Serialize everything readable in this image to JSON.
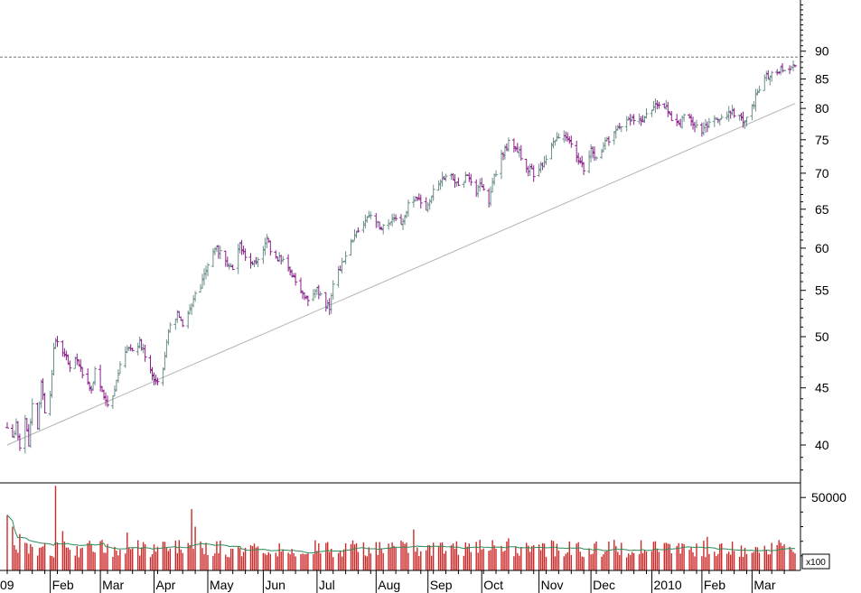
{
  "colors": {
    "background": "#ffffff",
    "axis": "#000000",
    "up_bar": "#6b8f8a",
    "down_bar": "#8a1f8a",
    "trendline": "#b4b4b4",
    "reference_line": "#777777",
    "volume_bar": "#cc2a2a",
    "volume_ma": "#2e8b57"
  },
  "chart_data": [
    {
      "type": "ohlc",
      "scale": "log",
      "ylim": [
        37,
        100
      ],
      "y_ticks": [
        40,
        45,
        50,
        55,
        60,
        65,
        70,
        75,
        80,
        85,
        90
      ],
      "reference_line": 88.9,
      "trendline": {
        "start": [
          "2009-01-09",
          40.0
        ],
        "end": [
          "2010-03-25",
          80.8
        ]
      },
      "x_labels": [
        "09",
        "Feb",
        "Mar",
        "Apr",
        "May",
        "Jun",
        "Jul",
        "Aug",
        "Sep",
        "Oct",
        "Nov",
        "Dec",
        "2010",
        "Feb",
        "Mar"
      ],
      "x_range": [
        "2009-01-09",
        "2010-03-25"
      ],
      "anchors": [
        [
          "2009-01-09",
          41.5
        ],
        [
          "2009-01-12",
          40.5
        ],
        [
          "2009-01-14",
          41.8
        ],
        [
          "2009-01-16",
          39.5
        ],
        [
          "2009-01-19",
          42.0
        ],
        [
          "2009-01-21",
          40.0
        ],
        [
          "2009-01-23",
          43.5
        ],
        [
          "2009-01-26",
          41.5
        ],
        [
          "2009-01-28",
          45.5
        ],
        [
          "2009-01-30",
          43.0
        ],
        [
          "2009-02-02",
          44.0
        ],
        [
          "2009-02-04",
          48.5
        ],
        [
          "2009-02-05",
          49.8
        ],
        [
          "2009-02-09",
          48.5
        ],
        [
          "2009-02-13",
          47.2
        ],
        [
          "2009-02-17",
          48.0
        ],
        [
          "2009-02-20",
          46.0
        ],
        [
          "2009-02-25",
          45.0
        ],
        [
          "2009-02-27",
          46.5
        ],
        [
          "2009-03-04",
          44.0
        ],
        [
          "2009-03-06",
          43.2
        ],
        [
          "2009-03-10",
          44.5
        ],
        [
          "2009-03-13",
          47.5
        ],
        [
          "2009-03-17",
          49.0
        ],
        [
          "2009-03-20",
          48.5
        ],
        [
          "2009-03-24",
          49.5
        ],
        [
          "2009-03-27",
          48.0
        ],
        [
          "2009-03-31",
          46.0
        ],
        [
          "2009-04-02",
          45.5
        ],
        [
          "2009-04-06",
          47.0
        ],
        [
          "2009-04-09",
          50.5
        ],
        [
          "2009-04-14",
          52.5
        ],
        [
          "2009-04-17",
          51.0
        ],
        [
          "2009-04-22",
          53.5
        ],
        [
          "2009-04-27",
          55.5
        ],
        [
          "2009-05-01",
          58.0
        ],
        [
          "2009-05-06",
          60.0
        ],
        [
          "2009-05-11",
          58.5
        ],
        [
          "2009-05-15",
          57.5
        ],
        [
          "2009-05-19",
          60.5
        ],
        [
          "2009-05-22",
          59.0
        ],
        [
          "2009-05-27",
          58.0
        ],
        [
          "2009-06-01",
          59.5
        ],
        [
          "2009-06-03",
          61.5
        ],
        [
          "2009-06-05",
          59.5
        ],
        [
          "2009-06-09",
          58.5
        ],
        [
          "2009-06-12",
          59.0
        ],
        [
          "2009-06-17",
          56.5
        ],
        [
          "2009-06-22",
          55.0
        ],
        [
          "2009-06-26",
          54.0
        ],
        [
          "2009-07-01",
          55.0
        ],
        [
          "2009-07-06",
          53.5
        ],
        [
          "2009-07-08",
          53.2
        ],
        [
          "2009-07-10",
          55.5
        ],
        [
          "2009-07-15",
          58.0
        ],
        [
          "2009-07-20",
          60.5
        ],
        [
          "2009-07-24",
          62.0
        ],
        [
          "2009-07-29",
          64.0
        ],
        [
          "2009-08-03",
          63.5
        ],
        [
          "2009-08-07",
          62.5
        ],
        [
          "2009-08-12",
          64.0
        ],
        [
          "2009-08-17",
          62.8
        ],
        [
          "2009-08-21",
          65.5
        ],
        [
          "2009-08-26",
          66.5
        ],
        [
          "2009-08-31",
          65.0
        ],
        [
          "2009-09-04",
          67.5
        ],
        [
          "2009-09-09",
          69.0
        ],
        [
          "2009-09-14",
          69.5
        ],
        [
          "2009-09-18",
          68.5
        ],
        [
          "2009-09-23",
          69.5
        ],
        [
          "2009-09-28",
          67.5
        ],
        [
          "2009-10-01",
          68.5
        ],
        [
          "2009-10-05",
          66.0
        ],
        [
          "2009-10-07",
          68.5
        ],
        [
          "2009-10-12",
          72.5
        ],
        [
          "2009-10-16",
          74.5
        ],
        [
          "2009-10-21",
          73.5
        ],
        [
          "2009-10-26",
          71.0
        ],
        [
          "2009-10-30",
          70.0
        ],
        [
          "2009-11-04",
          71.5
        ],
        [
          "2009-11-09",
          74.0
        ],
        [
          "2009-11-13",
          75.5
        ],
        [
          "2009-11-18",
          75.0
        ],
        [
          "2009-11-23",
          72.5
        ],
        [
          "2009-11-27",
          70.5
        ],
        [
          "2009-12-01",
          73.5
        ],
        [
          "2009-12-04",
          72.0
        ],
        [
          "2009-12-09",
          74.5
        ],
        [
          "2009-12-14",
          76.0
        ],
        [
          "2009-12-18",
          77.5
        ],
        [
          "2009-12-23",
          78.5
        ],
        [
          "2009-12-29",
          78.0
        ],
        [
          "2010-01-04",
          80.0
        ],
        [
          "2010-01-07",
          81.0
        ],
        [
          "2010-01-12",
          80.5
        ],
        [
          "2010-01-15",
          78.5
        ],
        [
          "2010-01-20",
          77.0
        ],
        [
          "2010-01-22",
          79.5
        ],
        [
          "2010-01-27",
          77.5
        ],
        [
          "2010-02-01",
          76.0
        ],
        [
          "2010-02-04",
          77.5
        ],
        [
          "2010-02-09",
          78.0
        ],
        [
          "2010-02-12",
          78.5
        ],
        [
          "2010-02-17",
          79.5
        ],
        [
          "2010-02-22",
          78.5
        ],
        [
          "2010-02-25",
          77.5
        ],
        [
          "2010-03-01",
          80.0
        ],
        [
          "2010-03-04",
          83.0
        ],
        [
          "2010-03-08",
          85.0
        ],
        [
          "2010-03-12",
          86.0
        ],
        [
          "2010-03-17",
          86.5
        ],
        [
          "2010-03-22",
          87.0
        ],
        [
          "2010-03-25",
          87.8
        ]
      ]
    },
    {
      "type": "bar",
      "series": "volume",
      "unit_label": "x100",
      "y_ticks": [
        50000
      ],
      "ylim": [
        0,
        60000
      ],
      "typical": 15000,
      "spikes": [
        {
          "date": "2009-01-09",
          "value": 38000
        },
        {
          "date": "2009-01-12",
          "value": 30000
        },
        {
          "date": "2009-01-16",
          "value": 25000
        },
        {
          "date": "2009-02-05",
          "value": 58000
        },
        {
          "date": "2009-02-09",
          "value": 27000
        },
        {
          "date": "2009-03-17",
          "value": 26000
        },
        {
          "date": "2009-04-22",
          "value": 42000
        },
        {
          "date": "2009-04-24",
          "value": 30000
        },
        {
          "date": "2009-05-06",
          "value": 20000
        },
        {
          "date": "2009-07-20",
          "value": 18000
        },
        {
          "date": "2009-08-24",
          "value": 28000
        },
        {
          "date": "2009-09-17",
          "value": 20000
        },
        {
          "date": "2009-10-16",
          "value": 22000
        },
        {
          "date": "2009-12-18",
          "value": 19000
        },
        {
          "date": "2010-01-22",
          "value": 18000
        },
        {
          "date": "2010-02-04",
          "value": 23000
        },
        {
          "date": "2010-03-19",
          "value": 18000
        }
      ]
    }
  ]
}
